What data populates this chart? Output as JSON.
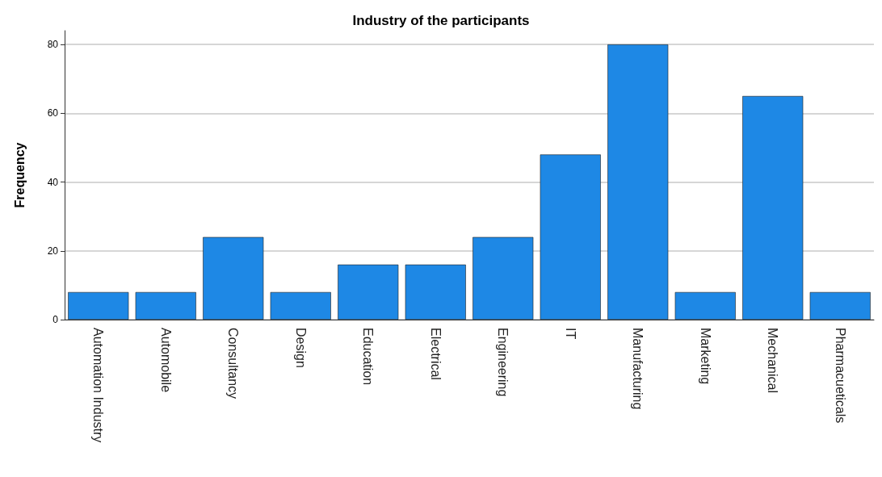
{
  "chart_data": {
    "type": "bar",
    "title": "Industry of the participants",
    "ylabel": "Frequency",
    "categories": [
      "Automation Industry",
      "Automobile",
      "Consultancy",
      "Design",
      "Education",
      "Electrical",
      "Engineering",
      "IT",
      "Manufacturing",
      "Marketing",
      "Mechanical",
      "Pharmacueticals"
    ],
    "values": [
      8,
      8,
      24,
      8,
      16,
      16,
      24,
      48,
      80,
      8,
      65,
      8
    ],
    "color": "#1e88e5",
    "ylim": [
      0,
      84
    ],
    "yticks": [
      0,
      20,
      40,
      60,
      80
    ],
    "grid": "y"
  }
}
